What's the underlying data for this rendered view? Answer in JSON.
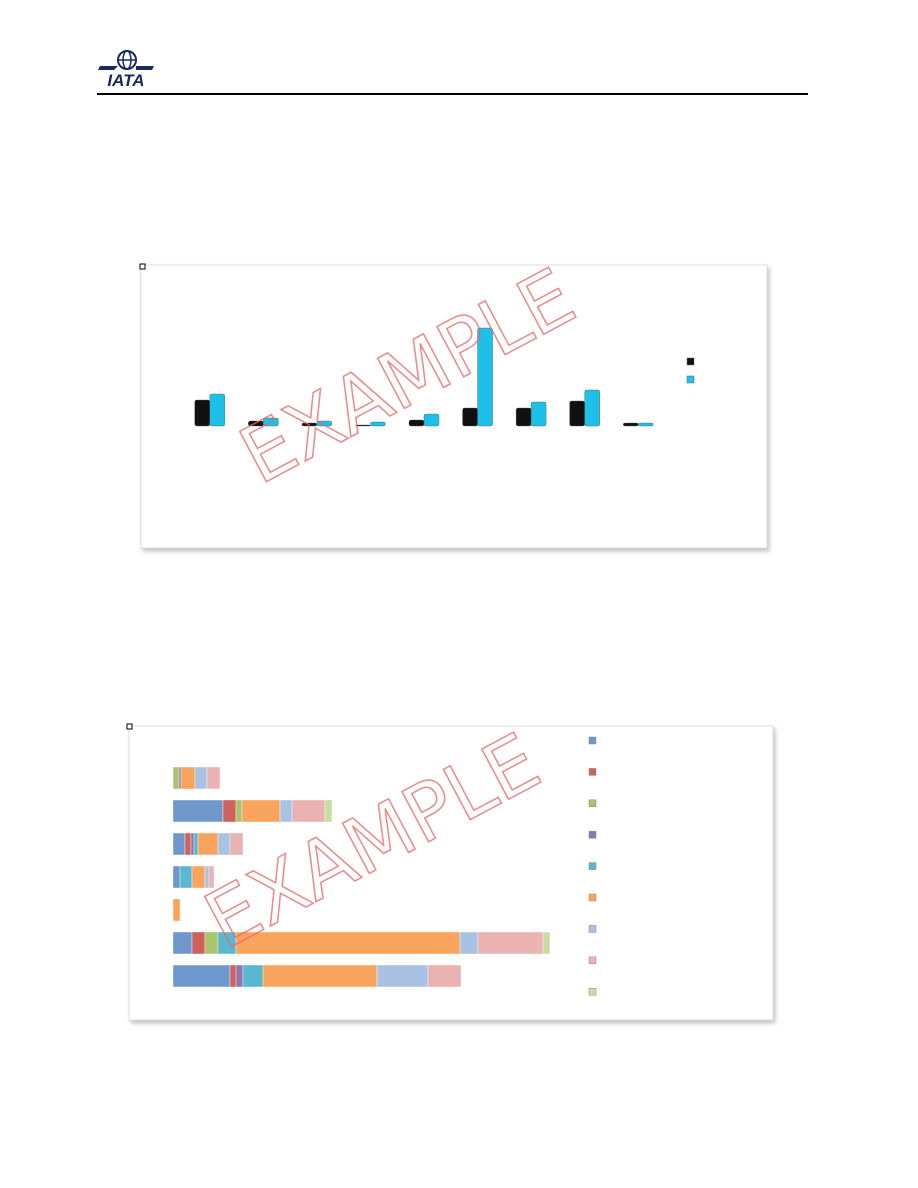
{
  "header": {
    "logo_text": "IATA"
  },
  "watermark": "EXAMPLE",
  "chart_data": [
    {
      "type": "bar",
      "categories": [
        null,
        null,
        null,
        null,
        null,
        null,
        null,
        null,
        null
      ],
      "series": [
        {
          "color": "#111111",
          "values": [
            26,
            5,
            3,
            1,
            6,
            18,
            18,
            25,
            3
          ]
        },
        {
          "color": "#1cc0e8",
          "values": [
            32,
            8,
            5,
            4,
            12,
            98,
            24,
            36,
            3
          ]
        }
      ],
      "ylim": [
        0,
        100
      ]
    },
    {
      "type": "barh_stacked",
      "categories": [
        null,
        null,
        null,
        null,
        null,
        null,
        null
      ],
      "series": [
        {
          "color": "#6f97cc",
          "values": [
            0,
            50,
            12,
            7,
            0,
            19,
            57
          ]
        },
        {
          "color": "#d0605c",
          "values": [
            0,
            13,
            6,
            0,
            0,
            13,
            6
          ]
        },
        {
          "color": "#a8c46c",
          "values": [
            6,
            6,
            0,
            0,
            0,
            13,
            0
          ]
        },
        {
          "color": "#8e76b0",
          "values": [
            2,
            0,
            3,
            0,
            0,
            0,
            7
          ]
        },
        {
          "color": "#5ab7cf",
          "values": [
            0,
            0,
            4,
            12,
            0,
            18,
            20
          ]
        },
        {
          "color": "#f8a45c",
          "values": [
            14,
            38,
            20,
            13,
            7,
            224,
            114
          ]
        },
        {
          "color": "#a9c1e3",
          "values": [
            12,
            12,
            12,
            4,
            0,
            18,
            51
          ]
        },
        {
          "color": "#eab3b2",
          "values": [
            13,
            33,
            13,
            5,
            0,
            65,
            33
          ]
        },
        {
          "color": "#c9dca6",
          "values": [
            0,
            7,
            0,
            0,
            0,
            7,
            0
          ]
        }
      ],
      "xlim": [
        0,
        400
      ]
    }
  ]
}
